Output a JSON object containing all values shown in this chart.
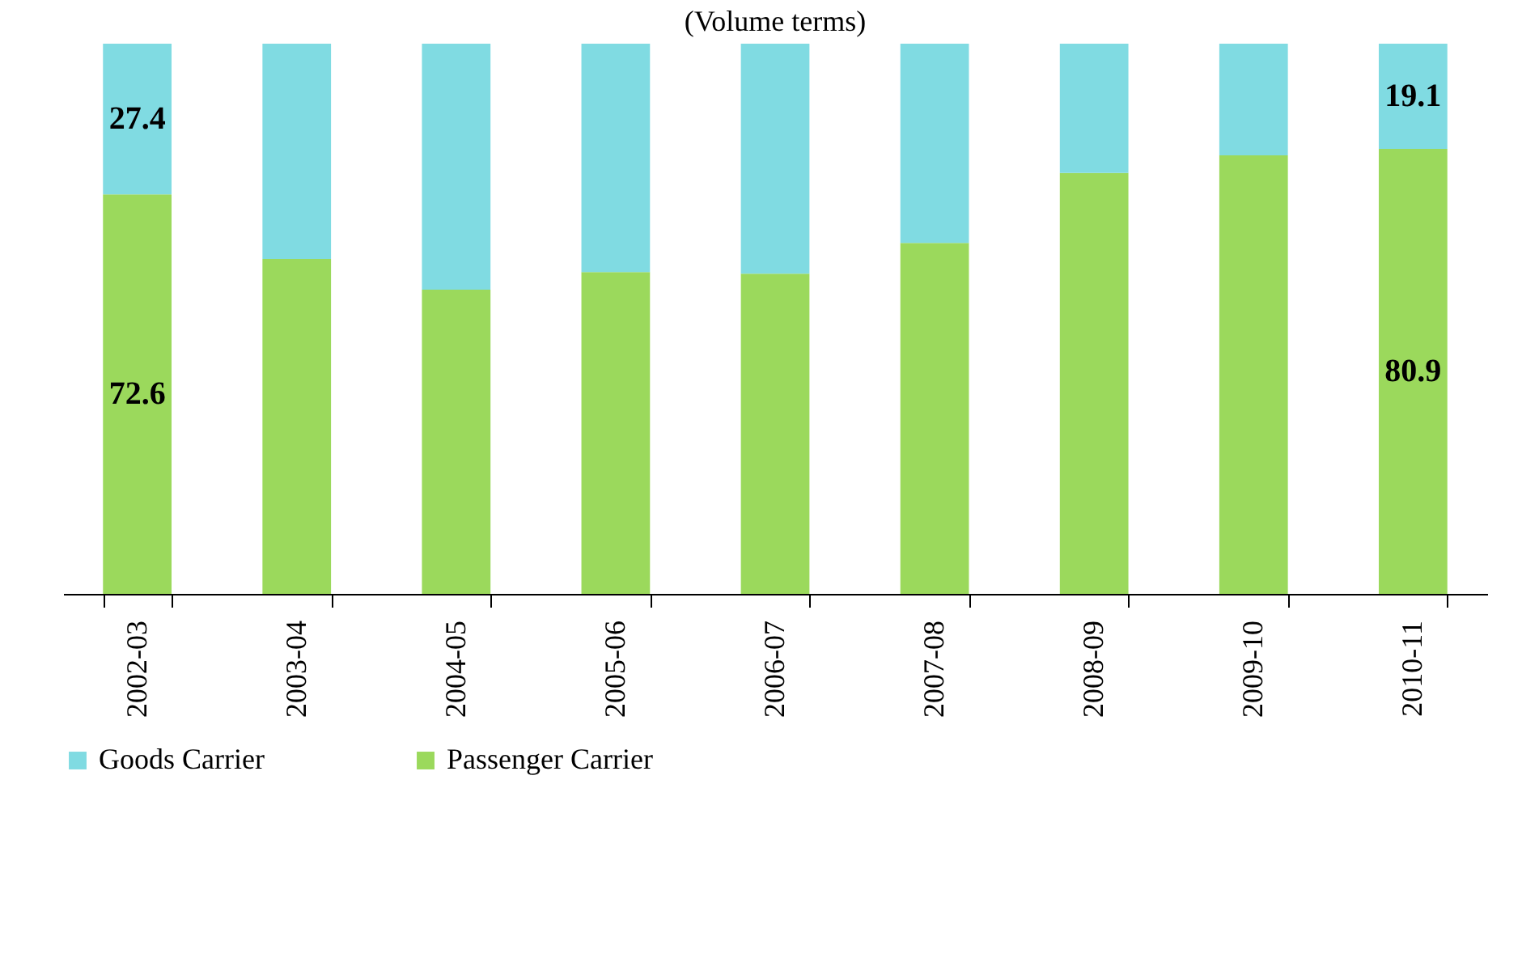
{
  "chart_data": {
    "type": "bar",
    "subtitle": "(Volume terms)",
    "stacked": true,
    "categories": [
      "2002-03",
      "2003-04",
      "2004-05",
      "2005-06",
      "2006-07",
      "2007-08",
      "2008-09",
      "2009-10",
      "2010-11"
    ],
    "series": [
      {
        "name": "Passenger Carrier",
        "color": "#9bd95c",
        "values": [
          72.6,
          60.9,
          55.3,
          58.5,
          58.2,
          63.8,
          76.5,
          79.7,
          80.9
        ],
        "value_labels": [
          "72.6",
          null,
          null,
          null,
          null,
          null,
          null,
          null,
          "80.9"
        ]
      },
      {
        "name": "Goods Carrier",
        "color": "#80dbe2",
        "values": [
          27.4,
          39.1,
          44.7,
          41.5,
          41.8,
          36.2,
          23.5,
          20.3,
          19.1
        ],
        "value_labels": [
          "27.4",
          null,
          null,
          null,
          null,
          null,
          null,
          null,
          "19.1"
        ]
      }
    ],
    "ylim": [
      0,
      100
    ],
    "tick_labels": "x",
    "legend": "bottom",
    "grid": false
  }
}
